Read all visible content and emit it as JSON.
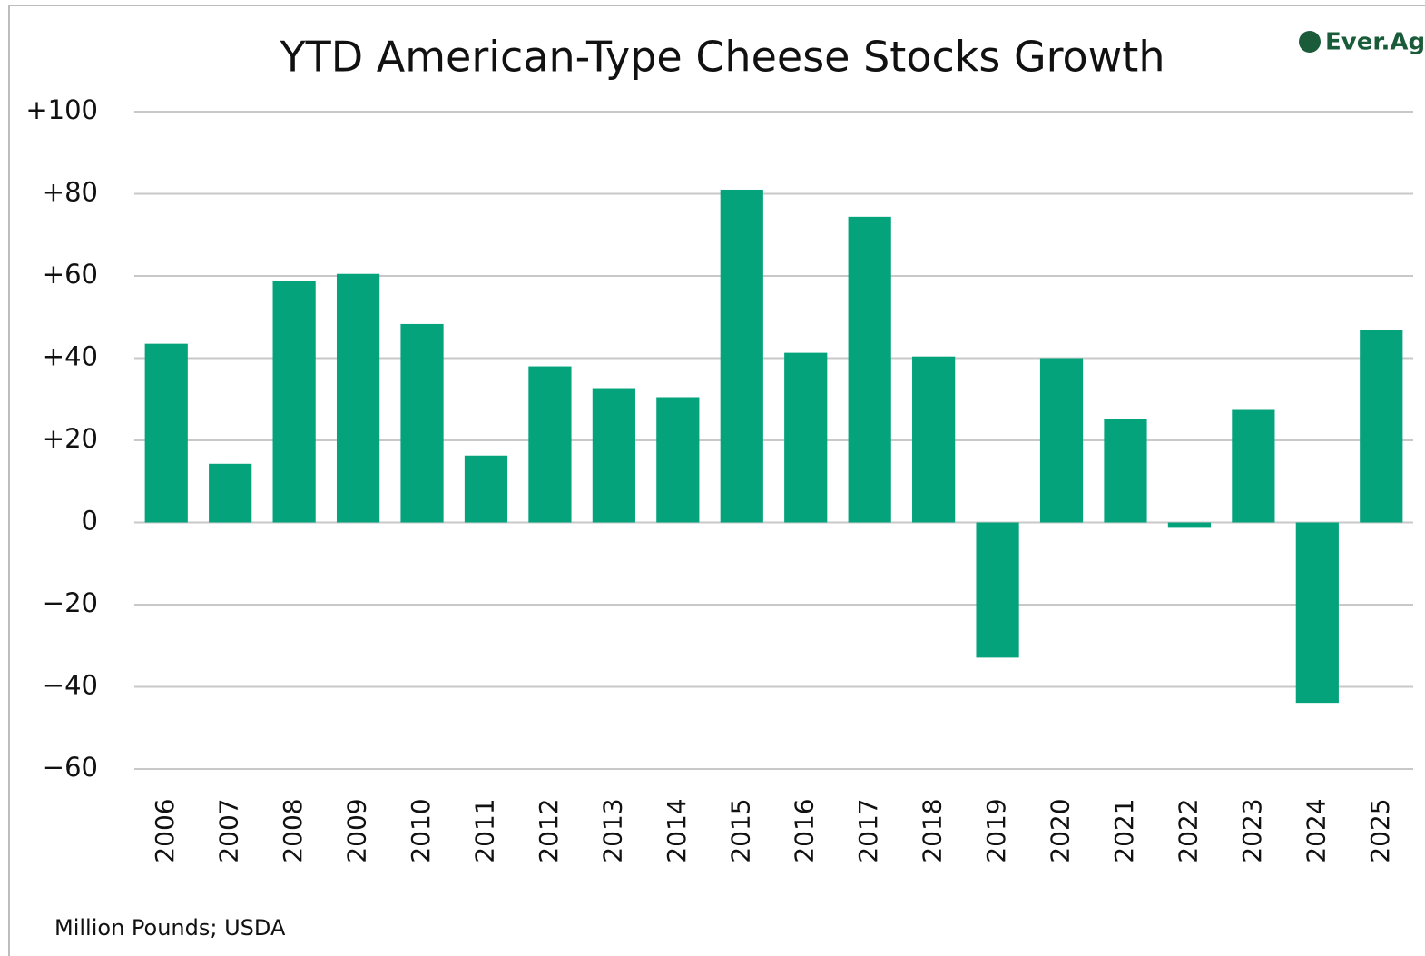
{
  "chart_data": {
    "type": "bar",
    "title": "YTD American-Type Cheese Stocks Growth",
    "logo": "Ever.Ag",
    "note": "Million Pounds; USDA",
    "categories": [
      "2006",
      "2007",
      "2008",
      "2009",
      "2010",
      "2011",
      "2012",
      "2013",
      "2014",
      "2015",
      "2016",
      "2017",
      "2018",
      "2019",
      "2020",
      "2021",
      "2022",
      "2023",
      "2024",
      "2025"
    ],
    "values": [
      43.5,
      14.3,
      58.7,
      60.5,
      48.3,
      16.3,
      38,
      32.7,
      30.5,
      81,
      41.3,
      74.4,
      40.4,
      -32.9,
      40,
      25.2,
      -1.3,
      27.4,
      -43.9,
      46.8
    ],
    "color": "#05a37c",
    "ylim": [
      -60,
      100
    ],
    "yticks": [
      {
        "value": -60,
        "label": "−60"
      },
      {
        "value": -40,
        "label": "−40"
      },
      {
        "value": -20,
        "label": "−20"
      },
      0,
      {
        "value": 20,
        "label": "+20"
      },
      {
        "value": 40,
        "label": "+40"
      },
      {
        "value": 60,
        "label": "+60"
      },
      {
        "value": 80,
        "label": "+80"
      },
      {
        "value": 100,
        "label": "+100"
      }
    ],
    "grid": true
  }
}
